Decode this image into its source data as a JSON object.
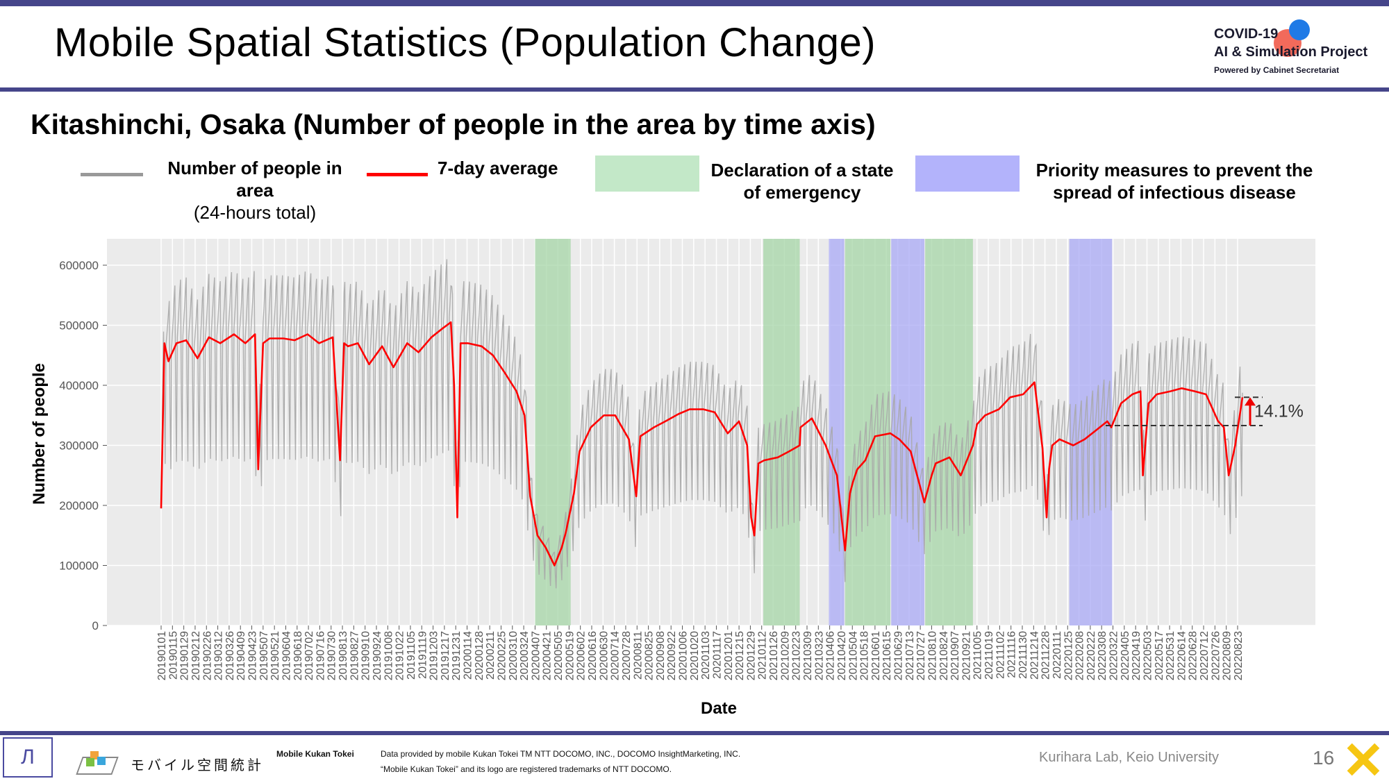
{
  "header": {
    "title": "Mobile Spatial Statistics (Population Change)",
    "logo": {
      "line1": "COVID-19",
      "line2": "AI & Simulation Project",
      "line3": "Powered by Cabinet Secretariat"
    }
  },
  "colors": {
    "accent_bar": "#45458a",
    "daily_line": "#a9a9a9",
    "avg_line": "#ff0000",
    "emergency_band": "#a5d6a7",
    "priority_band": "#a9a9f5",
    "panel_bg": "#ebebeb"
  },
  "legend": {
    "daily_label": "Number of people in area",
    "daily_sublabel": "(24-hours total)",
    "avg_label": "7-day average",
    "emergency_label_1": "Declaration of a state",
    "emergency_label_2": "of emergency",
    "priority_label_1": "Priority measures to prevent the",
    "priority_label_2": "spread of infectious disease"
  },
  "chart_data": {
    "type": "line",
    "title": "Kitashinchi, Osaka (Number of people in the area by time axis)",
    "xlabel": "Date",
    "ylabel": "Number of people",
    "ylim": [
      0,
      640000
    ],
    "yticks": [
      0,
      100000,
      200000,
      300000,
      400000,
      500000,
      600000
    ],
    "ytick_labels": [
      "0",
      "100000",
      "200000",
      "300000",
      "400000",
      "500000",
      "600000"
    ],
    "x_start": "20190101",
    "x_end": "20220829",
    "xtick_labels": [
      "20190101",
      "20190115",
      "20190129",
      "20190212",
      "20190226",
      "20190312",
      "20190326",
      "20190409",
      "20190423",
      "20190507",
      "20190521",
      "20190604",
      "20190618",
      "20190702",
      "20190716",
      "20190730",
      "20190813",
      "20190827",
      "20190910",
      "20190924",
      "20191008",
      "20191022",
      "20191105",
      "20191119",
      "20191203",
      "20191217",
      "20191231",
      "20200114",
      "20200128",
      "20200211",
      "20200225",
      "20200310",
      "20200324",
      "20200407",
      "20200421",
      "20200505",
      "20200519",
      "20200602",
      "20200616",
      "20200630",
      "20200714",
      "20200728",
      "20200811",
      "20200825",
      "20200908",
      "20200922",
      "20201006",
      "20201020",
      "20201103",
      "20201117",
      "20201201",
      "20201215",
      "20201229",
      "20210112",
      "20210126",
      "20210209",
      "20210223",
      "20210309",
      "20210323",
      "20210406",
      "20210420",
      "20210504",
      "20210518",
      "20210601",
      "20210615",
      "20210629",
      "20210713",
      "20210727",
      "20210810",
      "20210824",
      "20210907",
      "20210921",
      "20211005",
      "20211019",
      "20211102",
      "20211116",
      "20211130",
      "20211214",
      "20211228",
      "20220111",
      "20220125",
      "20220208",
      "20220222",
      "20220308",
      "20220322",
      "20220405",
      "20220419",
      "20220503",
      "20220517",
      "20220531",
      "20220614",
      "20220628",
      "20220712",
      "20220726",
      "20220809",
      "20220823"
    ],
    "shaded_periods": [
      {
        "type": "emergency",
        "start": "20200407",
        "end": "20200521"
      },
      {
        "type": "emergency",
        "start": "20210114",
        "end": "20210228"
      },
      {
        "type": "priority",
        "start": "20210405",
        "end": "20210424"
      },
      {
        "type": "emergency",
        "start": "20210425",
        "end": "20210620"
      },
      {
        "type": "priority",
        "start": "20210621",
        "end": "20210801"
      },
      {
        "type": "emergency",
        "start": "20210802",
        "end": "20210930"
      },
      {
        "type": "priority",
        "start": "20220127",
        "end": "20220321"
      }
    ],
    "series": [
      {
        "name": "7-day average",
        "x": [
          "20190101",
          "20190105",
          "20190110",
          "20190120",
          "20190201",
          "20190215",
          "20190301",
          "20190315",
          "20190401",
          "20190415",
          "20190427",
          "20190501",
          "20190507",
          "20190515",
          "20190601",
          "20190615",
          "20190701",
          "20190715",
          "20190801",
          "20190810",
          "20190815",
          "20190820",
          "20190901",
          "20190915",
          "20191001",
          "20191015",
          "20191101",
          "20191115",
          "20191201",
          "20191215",
          "20191225",
          "20191229",
          "20200102",
          "20200106",
          "20200115",
          "20200201",
          "20200215",
          "20200301",
          "20200315",
          "20200325",
          "20200401",
          "20200410",
          "20200420",
          "20200501",
          "20200510",
          "20200515",
          "20200525",
          "20200601",
          "20200615",
          "20200701",
          "20200715",
          "20200801",
          "20200810",
          "20200815",
          "20200901",
          "20200915",
          "20201001",
          "20201015",
          "20201101",
          "20201115",
          "20201201",
          "20201215",
          "20201225",
          "20201230",
          "20210103",
          "20210108",
          "20210115",
          "20210201",
          "20210215",
          "20210228",
          "20210301",
          "20210315",
          "20210401",
          "20210415",
          "20210425",
          "20210501",
          "20210505",
          "20210510",
          "20210520",
          "20210601",
          "20210620",
          "20210701",
          "20210715",
          "20210801",
          "20210810",
          "20210815",
          "20210901",
          "20210915",
          "20210930",
          "20211005",
          "20211015",
          "20211101",
          "20211115",
          "20211201",
          "20211215",
          "20211225",
          "20211230",
          "20220102",
          "20220106",
          "20220115",
          "20220201",
          "20220215",
          "20220301",
          "20220315",
          "20220320",
          "20220401",
          "20220415",
          "20220425",
          "20220428",
          "20220505",
          "20220515",
          "20220601",
          "20220615",
          "20220701",
          "20220715",
          "20220730",
          "20220806",
          "20220812",
          "20220820",
          "20220829"
        ],
        "values": [
          195000,
          470000,
          440000,
          470000,
          475000,
          445000,
          480000,
          470000,
          485000,
          470000,
          485000,
          260000,
          470000,
          478000,
          478000,
          475000,
          485000,
          470000,
          480000,
          275000,
          470000,
          465000,
          470000,
          435000,
          465000,
          430000,
          470000,
          455000,
          480000,
          495000,
          505000,
          400000,
          180000,
          470000,
          470000,
          465000,
          450000,
          420000,
          390000,
          350000,
          215000,
          150000,
          130000,
          100000,
          130000,
          155000,
          220000,
          290000,
          330000,
          350000,
          350000,
          310000,
          215000,
          315000,
          330000,
          340000,
          352000,
          360000,
          360000,
          355000,
          320000,
          340000,
          300000,
          180000,
          150000,
          270000,
          275000,
          280000,
          290000,
          300000,
          330000,
          345000,
          300000,
          250000,
          125000,
          220000,
          240000,
          260000,
          275000,
          315000,
          320000,
          310000,
          290000,
          205000,
          250000,
          270000,
          280000,
          250000,
          300000,
          335000,
          350000,
          360000,
          380000,
          385000,
          405000,
          295000,
          180000,
          260000,
          300000,
          310000,
          300000,
          310000,
          325000,
          340000,
          330000,
          370000,
          385000,
          390000,
          250000,
          370000,
          385000,
          390000,
          395000,
          390000,
          385000,
          340000,
          330000,
          250000,
          300000,
          380000
        ]
      },
      {
        "name": "Number of people in area",
        "daily_low_approx": 230000,
        "daily_high_approx": 590000
      }
    ],
    "annotation": {
      "text": "14.1%",
      "from": 333000,
      "to": 380000
    }
  },
  "footer": {
    "brand_label": "Mobile Kukan Tokei",
    "credit_line1": "Data provided by mobile Kukan Tokei TM NTT DOCOMO, INC., DOCOMO InsightMarketing, INC.",
    "credit_line2": "“Mobile Kukan Tokei” and its logo are registered trademarks of NTT DOCOMO.",
    "lab": "Kurihara Lab, Keio University",
    "page_number": "16",
    "jp_logo": "モバイル空間統計"
  }
}
